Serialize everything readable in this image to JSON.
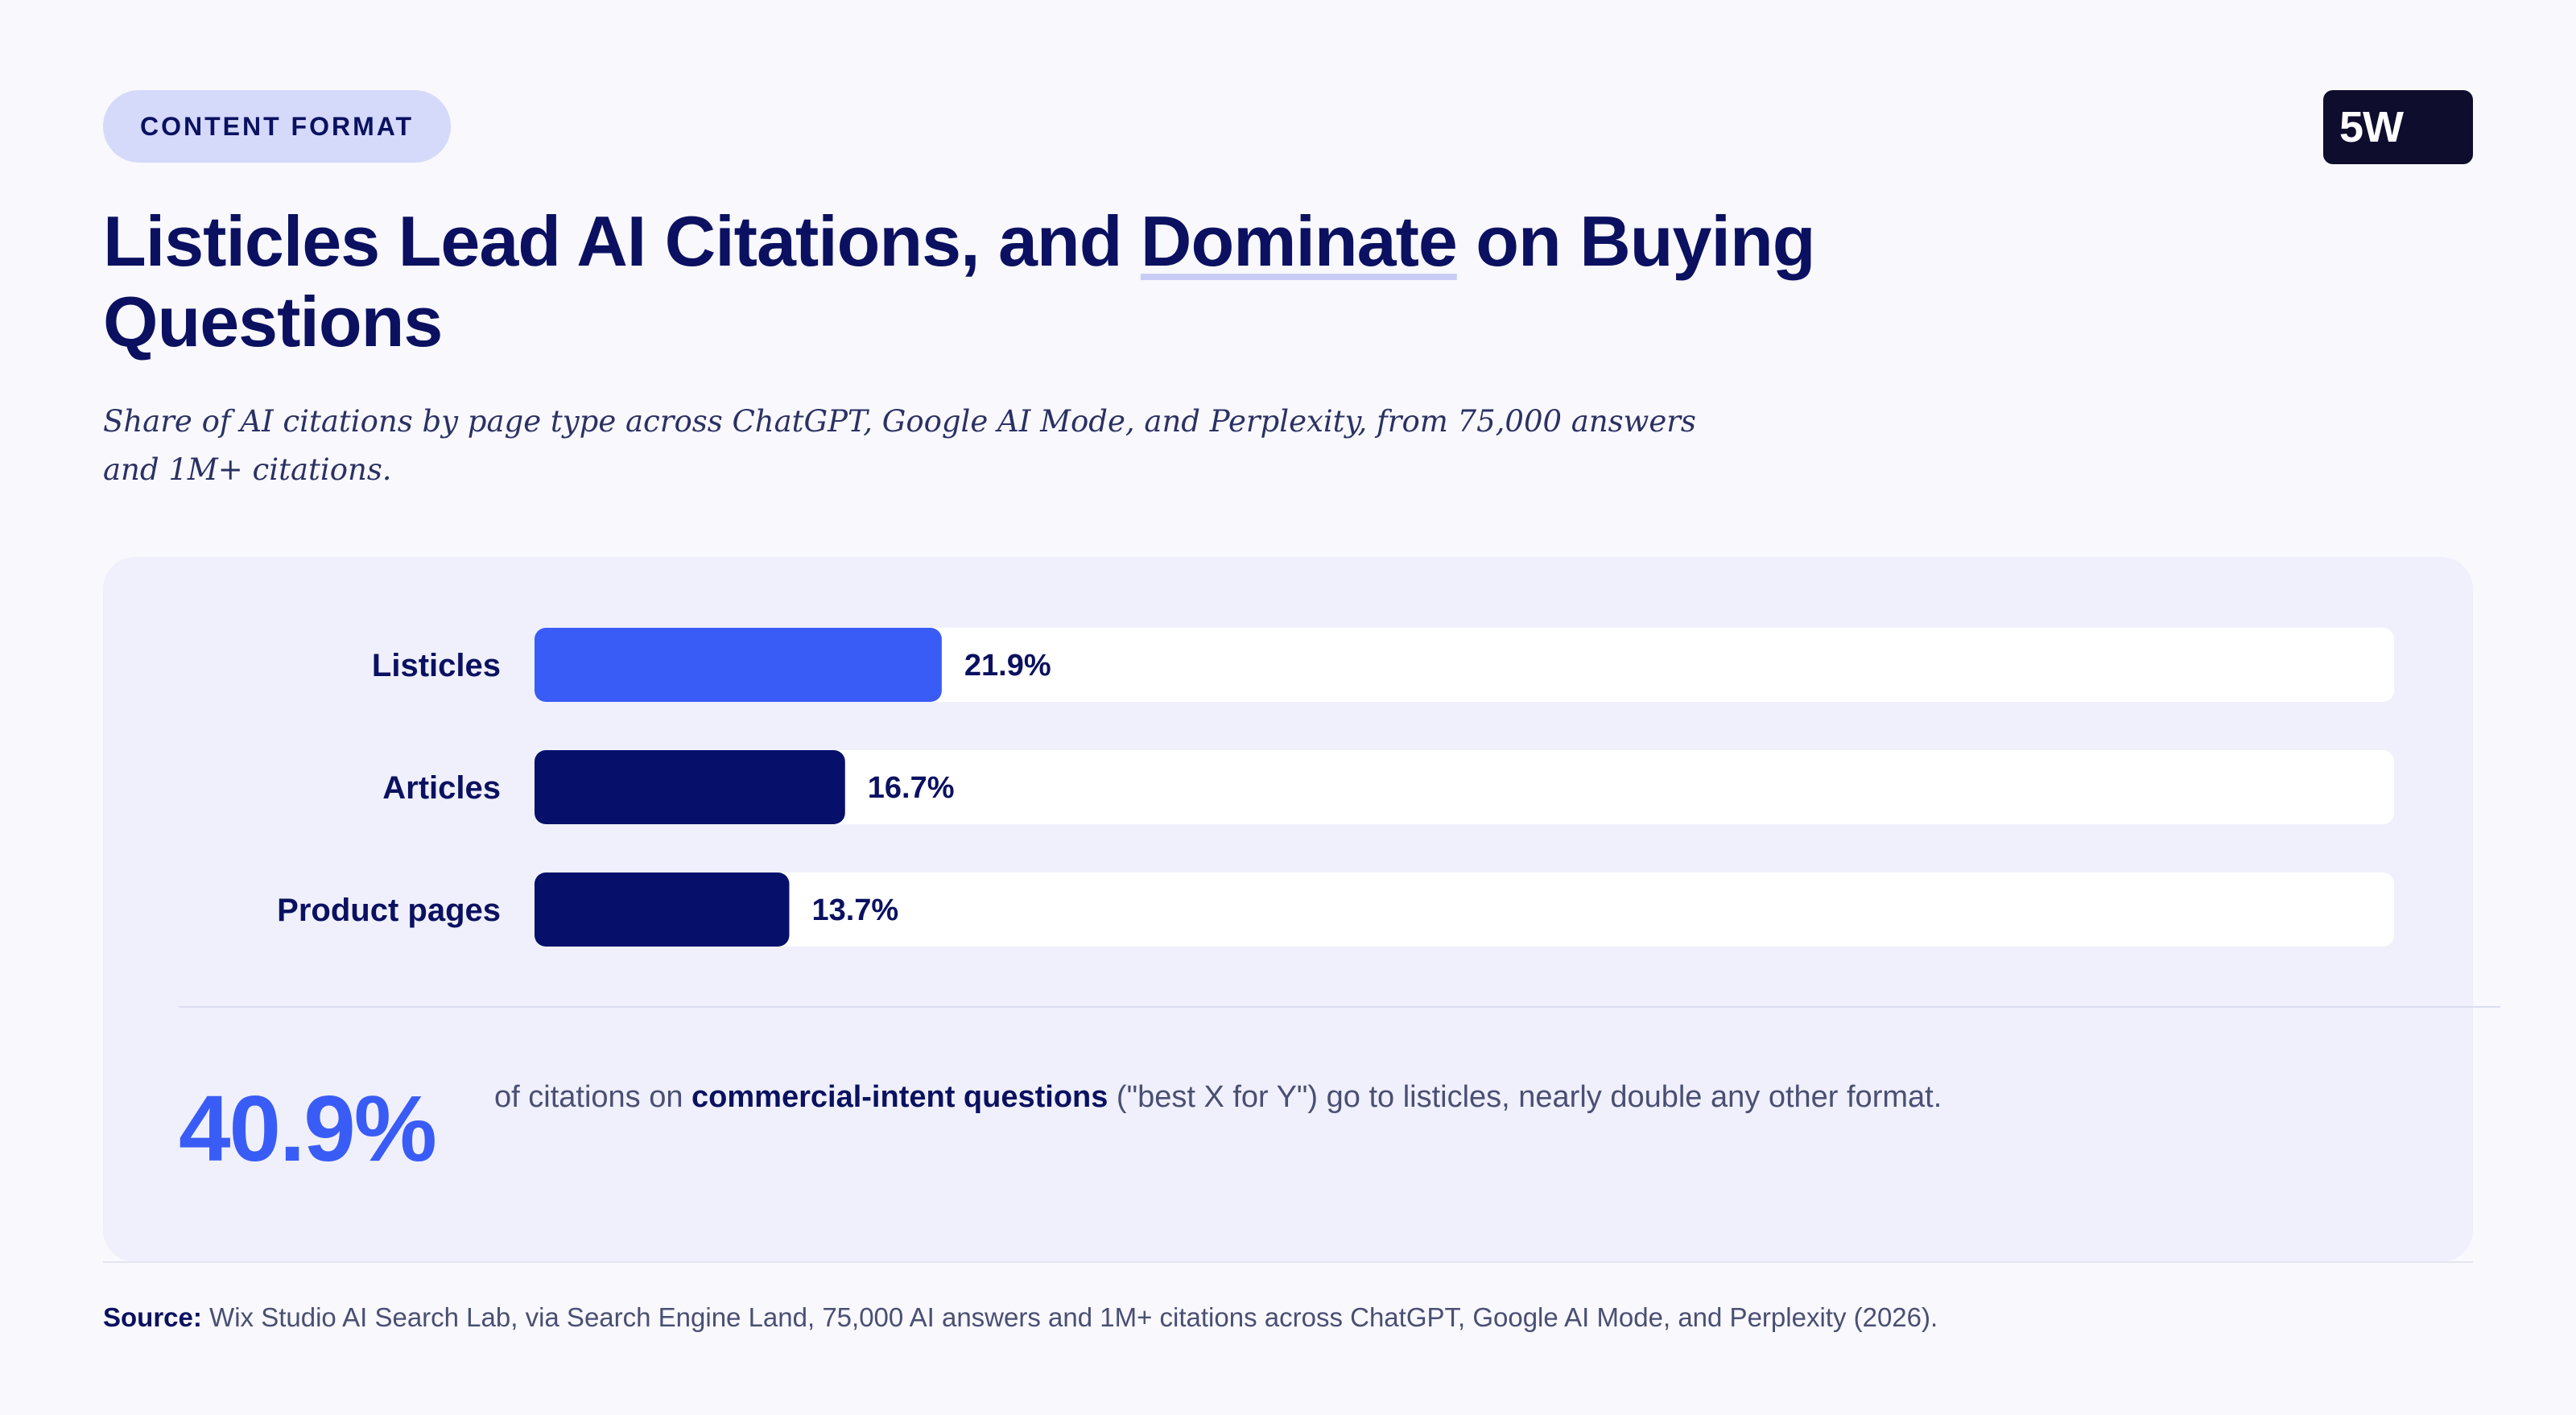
{
  "header": {
    "tag": "CONTENT FORMAT",
    "logo": "5W"
  },
  "title": {
    "before": "Listicles Lead AI Citations, and ",
    "highlight": "Dominate",
    "after": " on Buying Questions"
  },
  "subtitle": "Share of AI citations by page type across ChatGPT, Google AI Mode, and Perplexity, from 75,000 answers and 1M+ citations.",
  "chart_data": {
    "type": "bar",
    "orientation": "horizontal",
    "categories": [
      "Listicles",
      "Articles",
      "Product pages"
    ],
    "values": [
      21.9,
      16.7,
      13.7
    ],
    "value_labels": [
      "21.9%",
      "16.7%",
      "13.7%"
    ],
    "unit": "%",
    "xlim": [
      0,
      100
    ],
    "colors": [
      "#3a5cf6",
      "#06106b",
      "#06106b"
    ],
    "track_color": "#ffffff",
    "grid": false
  },
  "callout": {
    "value": "40.9%",
    "text_before": "of citations on ",
    "text_bold": "commercial-intent questions",
    "text_after": " (\"best X for Y\") go to listicles, nearly double any other format."
  },
  "source": {
    "label": "Source:",
    "text": " Wix Studio AI Search Lab, via Search Engine Land, 75,000 AI answers and 1M+ citations across ChatGPT, Google AI Mode, and Perplexity (2026)."
  },
  "colors": {
    "background": "#f8f8fd",
    "navy": "#0b1160",
    "accent": "#3a5cf6",
    "pill": "#d5d9fa",
    "card": "#eff0fb"
  }
}
